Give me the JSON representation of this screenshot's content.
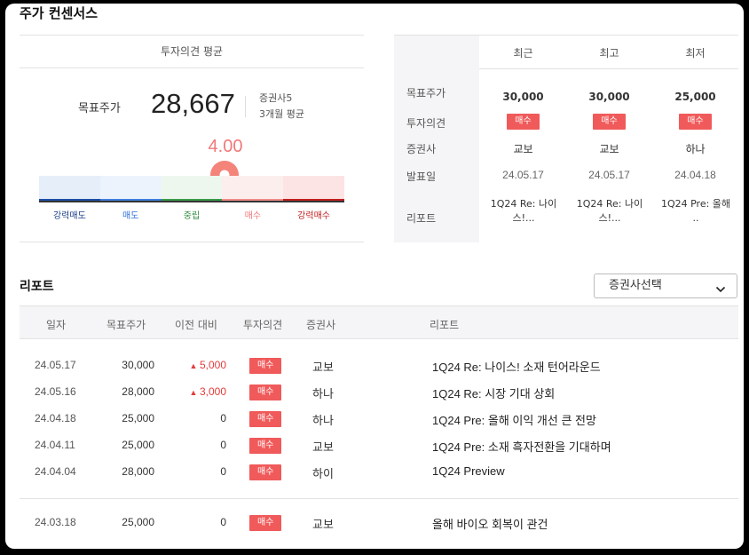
{
  "consensus": {
    "title": "주가 컨센서스",
    "avg_header": "투자의견 평균",
    "target_label": "목표주가",
    "target_value": "28,667",
    "broker_count": "증권사5",
    "period": "3개월 평균",
    "score": "4.00",
    "score_fraction": 0.6,
    "scale": [
      "강력매도",
      "매도",
      "중립",
      "매수",
      "강력매수"
    ],
    "scale_colors": [
      "#1e4fa6",
      "#3f7fe0",
      "#3a9a4a",
      "#f08d8a",
      "#c21f1f"
    ]
  },
  "recent": {
    "columns": [
      "최근",
      "최고",
      "최저"
    ],
    "row_labels": [
      "목표주가",
      "투자의견",
      "증권사",
      "발표일",
      "리포트"
    ],
    "cols": [
      {
        "target": "30,000",
        "opinion": "매수",
        "firm": "교보",
        "date": "24.05.17",
        "report": "1Q24 Re: 나이스!..."
      },
      {
        "target": "30,000",
        "opinion": "매수",
        "firm": "교보",
        "date": "24.05.17",
        "report": "1Q24 Re: 나이스!..."
      },
      {
        "target": "25,000",
        "opinion": "매수",
        "firm": "하나",
        "date": "24.04.18",
        "report": "1Q24 Pre: 올해 .."
      }
    ]
  },
  "report": {
    "title": "리포트",
    "select_label": "증권사선택",
    "headers": [
      "일자",
      "목표주가",
      "이전 대비",
      "투자의견",
      "증권사",
      "리포트"
    ],
    "rows": [
      {
        "date": "24.05.17",
        "target": "30,000",
        "change": "5,000",
        "up": true,
        "opinion": "매수",
        "firm": "교보",
        "title": "1Q24 Re: 나이스! 소재 턴어라운드"
      },
      {
        "date": "24.05.16",
        "target": "28,000",
        "change": "3,000",
        "up": true,
        "opinion": "매수",
        "firm": "하나",
        "title": "1Q24 Re: 시장 기대 상회"
      },
      {
        "date": "24.04.18",
        "target": "25,000",
        "change": "0",
        "up": false,
        "opinion": "매수",
        "firm": "하나",
        "title": "1Q24 Pre: 올해 이익 개선 큰 전망"
      },
      {
        "date": "24.04.11",
        "target": "25,000",
        "change": "0",
        "up": false,
        "opinion": "매수",
        "firm": "교보",
        "title": "1Q24 Pre: 소재 흑자전환을 기대하며"
      },
      {
        "date": "24.04.04",
        "target": "28,000",
        "change": "0",
        "up": false,
        "opinion": "매수",
        "firm": "하이",
        "title": "1Q24 Preview"
      },
      {
        "date": "24.03.18",
        "target": "25,000",
        "change": "0",
        "up": false,
        "opinion": "매수",
        "firm": "교보",
        "title": "올해 바이오 회복이 관건"
      }
    ]
  }
}
